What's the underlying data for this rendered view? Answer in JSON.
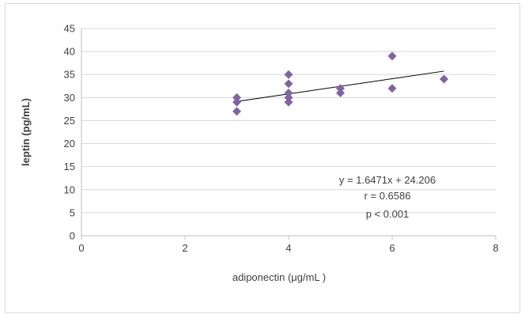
{
  "chart_data": {
    "type": "scatter",
    "title": "",
    "xlabel": "adiponectin (μg/mL )",
    "ylabel": "leptin (pg/mL)",
    "xlim": [
      0,
      8
    ],
    "ylim": [
      0,
      45
    ],
    "x_ticks": [
      0,
      2,
      4,
      6,
      8
    ],
    "y_ticks": [
      0,
      5,
      10,
      15,
      20,
      25,
      30,
      35,
      40,
      45
    ],
    "grid": "horizontal",
    "legend": "none",
    "marker": "diamond",
    "marker_color": "#8064A2",
    "trendline_color": "#000000",
    "points": [
      {
        "x": 3,
        "y": 27
      },
      {
        "x": 3,
        "y": 29
      },
      {
        "x": 3,
        "y": 30
      },
      {
        "x": 4,
        "y": 29
      },
      {
        "x": 4,
        "y": 30
      },
      {
        "x": 4,
        "y": 31
      },
      {
        "x": 4,
        "y": 33
      },
      {
        "x": 4,
        "y": 35
      },
      {
        "x": 5,
        "y": 31
      },
      {
        "x": 5,
        "y": 32
      },
      {
        "x": 6,
        "y": 32
      },
      {
        "x": 6,
        "y": 39
      },
      {
        "x": 7,
        "y": 34
      }
    ],
    "trendline": {
      "slope": 1.6471,
      "intercept": 24.206,
      "x_range": [
        3,
        7
      ]
    },
    "annotations": [
      "y = 1.6471x + 24.206",
      "r = 0.6586",
      "p < 0.001"
    ]
  }
}
